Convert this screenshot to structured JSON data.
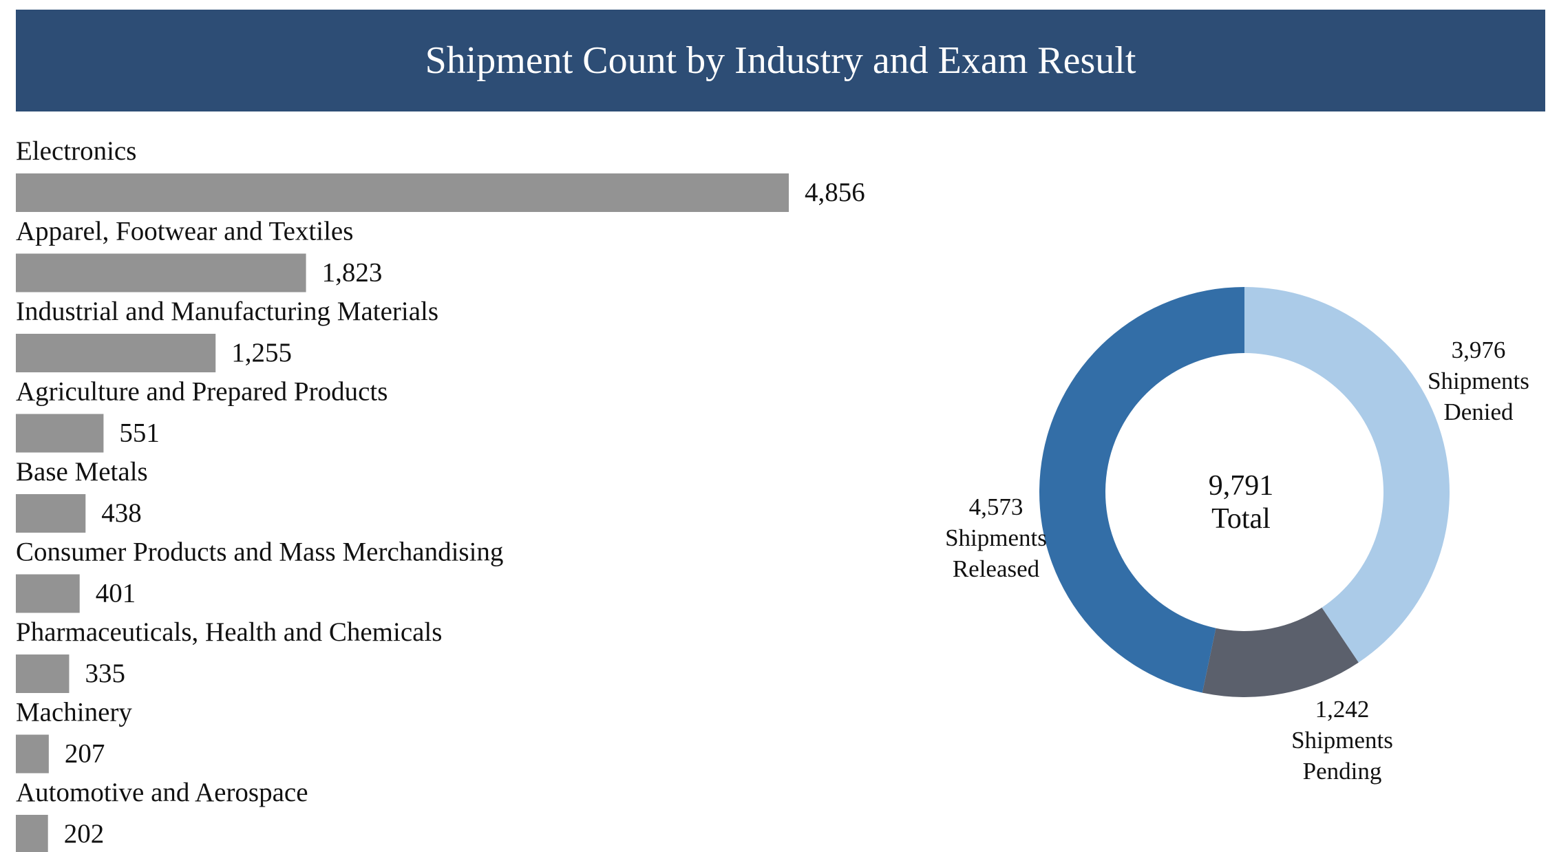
{
  "title": "Shipment Count by Industry and Exam Result",
  "chart_data": [
    {
      "type": "bar",
      "orientation": "horizontal",
      "categories": [
        "Electronics",
        "Apparel, Footwear and Textiles",
        "Industrial and Manufacturing Materials",
        "Agriculture and Prepared Products",
        "Base Metals",
        "Consumer Products and Mass Merchandising",
        "Pharmaceuticals, Health and Chemicals",
        "Machinery",
        "Automotive and Aerospace"
      ],
      "values": [
        4856,
        1823,
        1255,
        551,
        438,
        401,
        335,
        207,
        202
      ],
      "value_labels": [
        "4,856",
        "1,823",
        "1,255",
        "551",
        "438",
        "401",
        "335",
        "207",
        "202"
      ],
      "bar_color": "#939393",
      "grid": false,
      "legend": "none"
    },
    {
      "type": "pie",
      "style": "donut",
      "slices": [
        {
          "value": 3976,
          "value_label": "3,976",
          "label_lines": [
            "Shipments",
            "Denied"
          ],
          "color": "#abcbe8"
        },
        {
          "value": 1242,
          "value_label": "1,242",
          "label_lines": [
            "Shipments",
            "Pending"
          ],
          "color": "#5b606c"
        },
        {
          "value": 4573,
          "value_label": "4,573",
          "label_lines": [
            "Shipments",
            "Released"
          ],
          "color": "#336ea7"
        }
      ],
      "center_value": "9,791",
      "center_text": "Total",
      "legend": "none"
    }
  ]
}
